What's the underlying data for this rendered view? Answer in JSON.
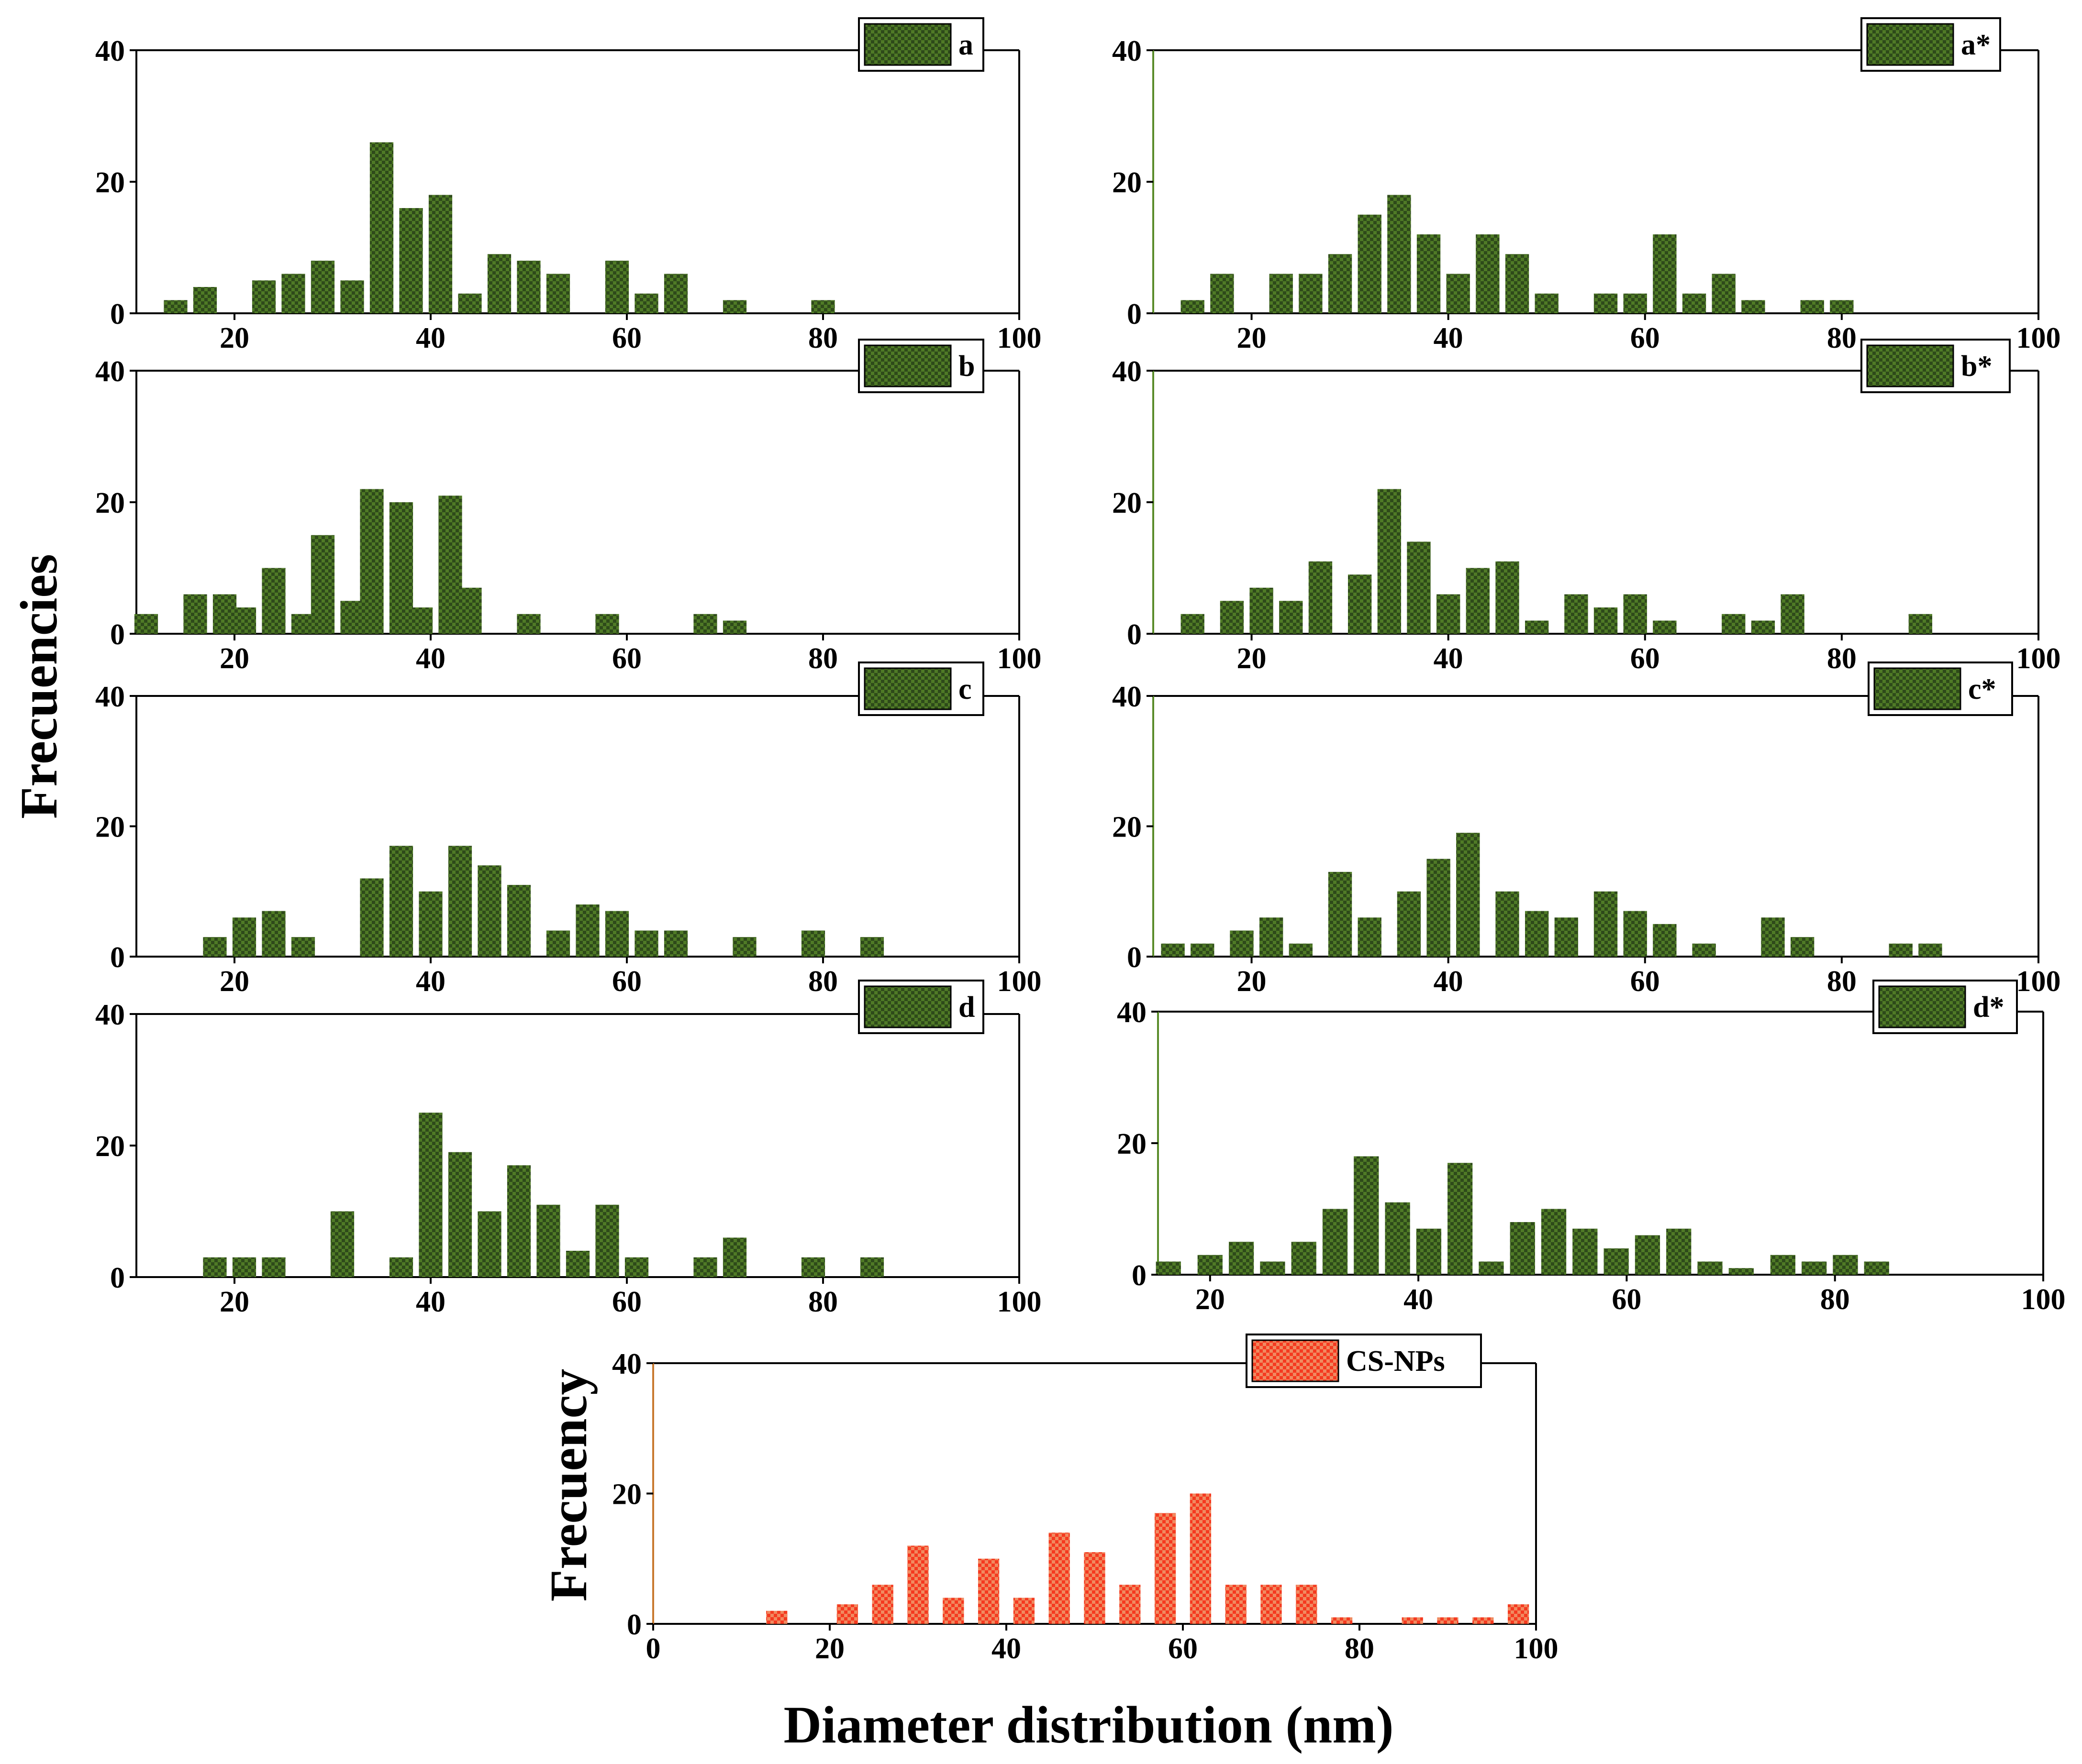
{
  "figure": {
    "y_label_main": "Frecuencies",
    "y_label_bottom": "Frecuency",
    "x_label_bottom": "Diameter distribution (nm)"
  },
  "colors": {
    "green_fill": "#4f7a26",
    "green_check": "#2e4a1a",
    "red_fill": "#f53a20",
    "red_check": "#f08a60",
    "axis": "#000000"
  },
  "chart_data": [
    {
      "type": "bar",
      "legend": "a",
      "xlim": [
        10,
        100
      ],
      "ylim": [
        0,
        40
      ],
      "xticks": [
        20,
        40,
        60,
        80,
        100
      ],
      "yticks": [
        0,
        20,
        40
      ],
      "x": [
        14,
        17,
        23,
        26,
        29,
        32,
        35,
        38,
        41,
        44,
        47,
        50,
        53,
        59,
        62,
        65,
        71,
        80
      ],
      "values": [
        2,
        4,
        5,
        6,
        8,
        5,
        26,
        16,
        18,
        3,
        9,
        8,
        6,
        8,
        3,
        6,
        2,
        2
      ]
    },
    {
      "type": "bar",
      "legend": "a*",
      "xlim": [
        10,
        100
      ],
      "ylim": [
        0,
        40
      ],
      "xticks": [
        20,
        40,
        60,
        80,
        100
      ],
      "yticks": [
        0,
        20,
        40
      ],
      "x": [
        14,
        17,
        23,
        26,
        29,
        32,
        35,
        38,
        41,
        44,
        47,
        50,
        56,
        59,
        62,
        65,
        68,
        71,
        77,
        80
      ],
      "values": [
        2,
        6,
        6,
        6,
        9,
        15,
        18,
        12,
        6,
        12,
        9,
        3,
        3,
        3,
        12,
        3,
        6,
        2,
        2,
        2
      ]
    },
    {
      "type": "bar",
      "legend": "b",
      "xlim": [
        10,
        100
      ],
      "ylim": [
        0,
        40
      ],
      "xticks": [
        20,
        40,
        60,
        80,
        100
      ],
      "yticks": [
        0,
        20,
        40
      ],
      "x": [
        11,
        16,
        19,
        21,
        24,
        27,
        29,
        32,
        34,
        37,
        39,
        42,
        44,
        50,
        58,
        68,
        71
      ],
      "values": [
        3,
        6,
        6,
        4,
        10,
        3,
        15,
        5,
        22,
        20,
        4,
        21,
        7,
        3,
        3,
        3,
        2
      ]
    },
    {
      "type": "bar",
      "legend": "b*",
      "xlim": [
        10,
        100
      ],
      "ylim": [
        0,
        40
      ],
      "xticks": [
        20,
        40,
        60,
        80,
        100
      ],
      "yticks": [
        0,
        20,
        40
      ],
      "x": [
        14,
        18,
        21,
        24,
        27,
        31,
        34,
        37,
        40,
        43,
        46,
        49,
        53,
        56,
        59,
        62,
        69,
        72,
        75,
        88
      ],
      "values": [
        3,
        5,
        7,
        5,
        11,
        9,
        22,
        14,
        6,
        10,
        11,
        2,
        6,
        4,
        6,
        2,
        3,
        2,
        6,
        3
      ]
    },
    {
      "type": "bar",
      "legend": "c",
      "xlim": [
        10,
        100
      ],
      "ylim": [
        0,
        40
      ],
      "xticks": [
        20,
        40,
        60,
        80,
        100
      ],
      "yticks": [
        0,
        20,
        40
      ],
      "x": [
        18,
        21,
        24,
        27,
        34,
        37,
        40,
        43,
        46,
        49,
        53,
        56,
        59,
        62,
        65,
        72,
        79,
        85
      ],
      "values": [
        3,
        6,
        7,
        3,
        12,
        17,
        10,
        17,
        14,
        11,
        4,
        8,
        7,
        4,
        4,
        3,
        4,
        3
      ]
    },
    {
      "type": "bar",
      "legend": "c*",
      "xlim": [
        10,
        100
      ],
      "ylim": [
        0,
        40
      ],
      "xticks": [
        20,
        40,
        60,
        80,
        100
      ],
      "yticks": [
        0,
        20,
        40
      ],
      "x": [
        12,
        15,
        19,
        22,
        25,
        29,
        32,
        36,
        39,
        42,
        46,
        49,
        52,
        56,
        59,
        62,
        66,
        73,
        76,
        86,
        89
      ],
      "values": [
        2,
        2,
        4,
        6,
        2,
        13,
        6,
        10,
        15,
        19,
        10,
        7,
        6,
        10,
        7,
        5,
        2,
        6,
        3,
        2,
        2
      ]
    },
    {
      "type": "bar",
      "legend": "d",
      "xlim": [
        10,
        100
      ],
      "ylim": [
        0,
        40
      ],
      "xticks": [
        20,
        40,
        60,
        80,
        100
      ],
      "yticks": [
        0,
        20,
        40
      ],
      "x": [
        18,
        21,
        24,
        31,
        37,
        40,
        43,
        46,
        49,
        52,
        55,
        58,
        61,
        68,
        71,
        79,
        85
      ],
      "values": [
        3,
        3,
        3,
        10,
        3,
        25,
        19,
        10,
        17,
        11,
        4,
        11,
        3,
        3,
        6,
        3,
        3
      ]
    },
    {
      "type": "bar",
      "legend": "d*",
      "xlim": [
        15,
        100
      ],
      "ylim": [
        0,
        40
      ],
      "xticks": [
        20,
        40,
        60,
        80,
        100
      ],
      "yticks": [
        0,
        20,
        40
      ],
      "x": [
        16,
        20,
        23,
        26,
        29,
        32,
        35,
        38,
        41,
        44,
        47,
        50,
        53,
        56,
        59,
        62,
        65,
        68,
        71,
        75,
        78,
        81,
        84
      ],
      "values": [
        2,
        3,
        5,
        2,
        5,
        10,
        18,
        11,
        7,
        17,
        2,
        8,
        10,
        7,
        4,
        6,
        7,
        2,
        1,
        3,
        2,
        3,
        2
      ]
    },
    {
      "type": "bar",
      "legend": "CS-NPs",
      "xlim": [
        0,
        100
      ],
      "ylim": [
        0,
        40
      ],
      "xticks": [
        0,
        20,
        40,
        60,
        80,
        100
      ],
      "yticks": [
        0,
        20,
        40
      ],
      "x": [
        14,
        22,
        26,
        30,
        34,
        38,
        42,
        46,
        50,
        54,
        58,
        62,
        66,
        70,
        74,
        78,
        86,
        90,
        94,
        98
      ],
      "values": [
        2,
        3,
        6,
        12,
        4,
        10,
        4,
        14,
        11,
        6,
        17,
        20,
        6,
        6,
        6,
        1,
        1,
        1,
        1,
        3
      ]
    }
  ]
}
